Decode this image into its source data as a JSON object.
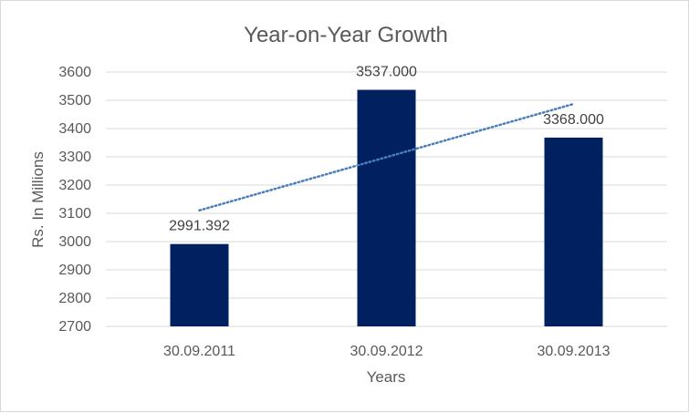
{
  "chart_data": {
    "type": "bar",
    "title": "Year-on-Year Growth",
    "xlabel": "Years",
    "ylabel": "Rs. In Millions",
    "categories": [
      "30.09.2011",
      "30.09.2012",
      "30.09.2013"
    ],
    "values": [
      2991.392,
      3537.0,
      3368.0
    ],
    "data_labels": [
      "2991.392",
      "3537.000",
      "3368.000"
    ],
    "ylim": [
      2700,
      3600
    ],
    "yticks": [
      2700,
      2800,
      2900,
      3000,
      3100,
      3200,
      3300,
      3400,
      3500,
      3600
    ],
    "grid": true,
    "legend": "none",
    "trendline": {
      "type": "linear",
      "style": "dotted"
    },
    "colors": {
      "bar": "#002060",
      "trendline": "#4a7ebb",
      "grid": "#d9d9d9",
      "text": "#595959"
    }
  }
}
